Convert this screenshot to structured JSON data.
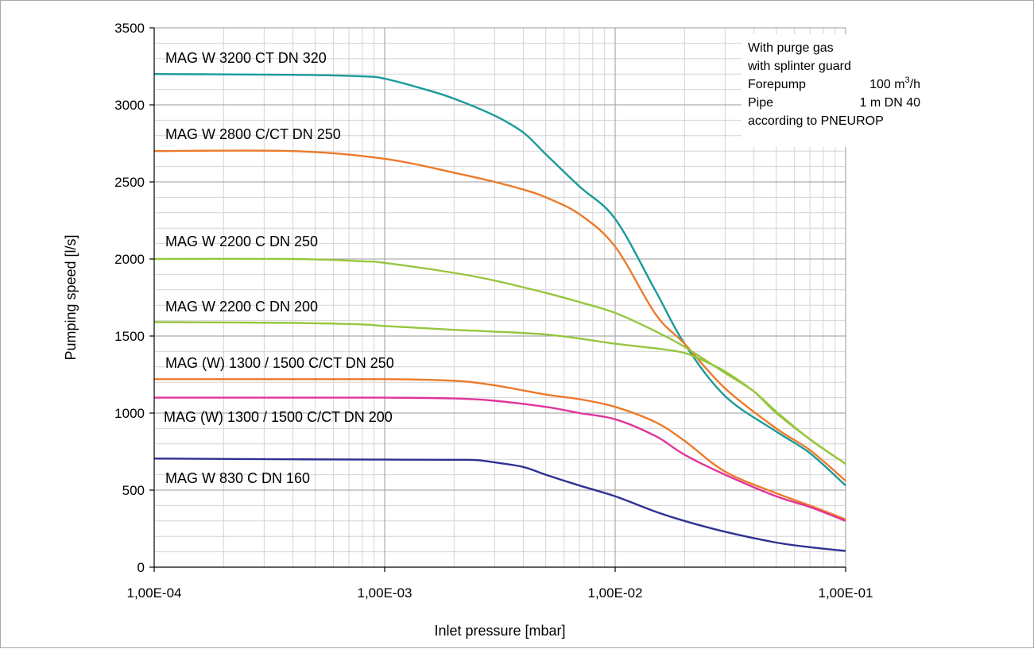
{
  "chart_data": {
    "type": "line",
    "xlabel": "Inlet pressure [mbar]",
    "ylabel": "Pumping speed [l/s]",
    "x_scale": "log",
    "xlim": [
      0.0001,
      0.1
    ],
    "ylim": [
      0,
      3500
    ],
    "x_ticks": [
      {
        "value": 0.0001,
        "label": "1,00E-04"
      },
      {
        "value": 0.001,
        "label": "1,00E-03"
      },
      {
        "value": 0.01,
        "label": "1,00E-02"
      },
      {
        "value": 0.1,
        "label": "1,00E-01"
      }
    ],
    "y_ticks": [
      {
        "value": 0,
        "label": "0"
      },
      {
        "value": 500,
        "label": "500"
      },
      {
        "value": 1000,
        "label": "1000"
      },
      {
        "value": 1500,
        "label": "1500"
      },
      {
        "value": 2000,
        "label": "2000"
      },
      {
        "value": 2500,
        "label": "2500"
      },
      {
        "value": 3000,
        "label": "3000"
      },
      {
        "value": 3500,
        "label": "3500"
      }
    ],
    "grid": true,
    "notes": {
      "line1": "With purge gas",
      "line2": "with splinter guard",
      "forepump_label": "Forepump",
      "forepump_value": "100 m",
      "forepump_sup": "3",
      "forepump_unit": "/h",
      "pipe_label": "Pipe",
      "pipe_value": "1 m DN 40",
      "line5": "according to PNEUROP"
    },
    "series": [
      {
        "name": "MAG W 3200 CT DN 320",
        "color": "#1a9a9a",
        "x": [
          0.0001,
          0.0004,
          0.0008,
          0.001,
          0.0015,
          0.002,
          0.003,
          0.004,
          0.005,
          0.007,
          0.01,
          0.015,
          0.02,
          0.03,
          0.05,
          0.07,
          0.1
        ],
        "y": [
          3200,
          3195,
          3185,
          3170,
          3100,
          3040,
          2930,
          2820,
          2680,
          2470,
          2260,
          1790,
          1450,
          1110,
          880,
          740,
          530
        ]
      },
      {
        "name": "MAG W 2800 C/CT DN 250",
        "color": "#ec7a2a",
        "x": [
          0.0001,
          0.0004,
          0.001,
          0.002,
          0.003,
          0.004,
          0.005,
          0.007,
          0.01,
          0.015,
          0.02,
          0.03,
          0.05,
          0.07,
          0.1
        ],
        "y": [
          2700,
          2700,
          2650,
          2560,
          2500,
          2450,
          2400,
          2290,
          2080,
          1640,
          1450,
          1160,
          900,
          760,
          560
        ]
      },
      {
        "name": "MAG W 2200 C DN 250",
        "color": "#97c63f",
        "x": [
          0.0001,
          0.0004,
          0.0008,
          0.001,
          0.002,
          0.003,
          0.005,
          0.007,
          0.01,
          0.015,
          0.02,
          0.03,
          0.04,
          0.05,
          0.07,
          0.1
        ],
        "y": [
          2000,
          2000,
          1985,
          1975,
          1910,
          1860,
          1780,
          1720,
          1650,
          1530,
          1430,
          1260,
          1140,
          1010,
          830,
          670
        ]
      },
      {
        "name": "MAG W 2200 C DN 200",
        "color": "#97c63f",
        "x": [
          0.0001,
          0.0004,
          0.0008,
          0.001,
          0.002,
          0.005,
          0.01,
          0.015,
          0.02,
          0.025,
          0.03,
          0.04,
          0.05,
          0.07,
          0.1
        ],
        "y": [
          1590,
          1585,
          1575,
          1565,
          1540,
          1510,
          1450,
          1420,
          1390,
          1330,
          1270,
          1140,
          1000,
          830,
          670
        ]
      },
      {
        "name": "MAG (W) 1300 / 1500 C/CT DN 250",
        "color": "#ec7a2a",
        "x": [
          0.0001,
          0.0004,
          0.001,
          0.002,
          0.003,
          0.005,
          0.007,
          0.01,
          0.015,
          0.02,
          0.03,
          0.05,
          0.07,
          0.1
        ],
        "y": [
          1220,
          1220,
          1220,
          1210,
          1180,
          1120,
          1090,
          1040,
          940,
          820,
          620,
          480,
          400,
          310
        ]
      },
      {
        "name": "MAG (W) 1300 / 1500 C/CT DN 200",
        "color": "#e0359a",
        "x": [
          0.0001,
          0.0004,
          0.001,
          0.002,
          0.003,
          0.005,
          0.007,
          0.01,
          0.015,
          0.02,
          0.03,
          0.05,
          0.07,
          0.1
        ],
        "y": [
          1100,
          1100,
          1100,
          1095,
          1080,
          1040,
          1000,
          960,
          850,
          730,
          600,
          460,
          390,
          300
        ]
      },
      {
        "name": "MAG W 830 C DN 160",
        "color": "#2e3192",
        "x": [
          0.0001,
          0.0004,
          0.001,
          0.002,
          0.0025,
          0.003,
          0.004,
          0.005,
          0.007,
          0.01,
          0.015,
          0.02,
          0.03,
          0.05,
          0.07,
          0.1
        ],
        "y": [
          705,
          700,
          698,
          697,
          695,
          680,
          650,
          600,
          530,
          460,
          360,
          300,
          230,
          160,
          130,
          105
        ]
      }
    ]
  }
}
